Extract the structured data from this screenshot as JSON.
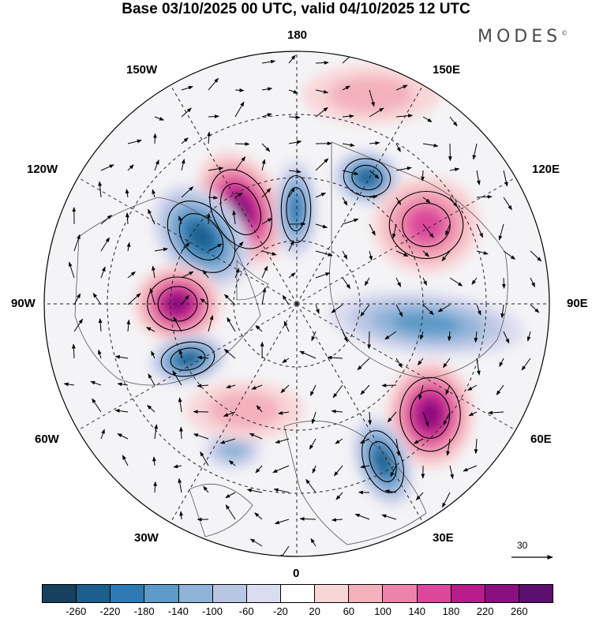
{
  "title": "Base 03/10/2025 00 UTC, valid 04/10/2025 12 UTC",
  "brand": "MODES",
  "brand_mark": "©",
  "lon_labels": {
    "top": "180",
    "bottom": "0",
    "left": "90W",
    "right": "90E",
    "upper_left_1": "150W",
    "upper_left_2": "120W",
    "upper_right_1": "150E",
    "upper_right_2": "120E",
    "lower_left_1": "60W",
    "lower_left_2": "30W",
    "lower_right_1": "60E",
    "lower_right_2": "30E"
  },
  "reference_vector": {
    "label": "30"
  },
  "colorbar": {
    "colors": [
      "#17405e",
      "#1c5e8c",
      "#2f7ab2",
      "#5d9ac7",
      "#8fb3d9",
      "#b9c6e3",
      "#dcdcf0",
      "#ffffff",
      "#f8d6d8",
      "#f3b1bc",
      "#ec84a9",
      "#dc479b",
      "#b91b8a",
      "#8a107f",
      "#5b0f6e"
    ],
    "labels": [
      "-260",
      "-220",
      "-180",
      "-140",
      "-100",
      "-60",
      "-20",
      "20",
      "60",
      "100",
      "140",
      "180",
      "220",
      "260"
    ]
  },
  "map_data": {
    "projection": "north polar stereographic",
    "anomalies": [
      {
        "name": "north-pacific-positive",
        "value": 240
      },
      {
        "name": "alaska-negative",
        "value": -240
      },
      {
        "name": "bering-negative",
        "value": -200
      },
      {
        "name": "east-siberia-negative",
        "value": -220
      },
      {
        "name": "siberia-positive",
        "value": 170
      },
      {
        "name": "central-asia-negative",
        "value": -140
      },
      {
        "name": "west-russia-positive",
        "value": 220
      },
      {
        "name": "scandinavia-negative",
        "value": -240
      },
      {
        "name": "canada-positive",
        "value": 240
      },
      {
        "name": "hudson-negative",
        "value": -250
      },
      {
        "name": "atlantic-negative",
        "value": -100
      },
      {
        "name": "mid-atlantic-positive",
        "value": 80
      },
      {
        "name": "pacific-positive",
        "value": 60
      }
    ]
  }
}
